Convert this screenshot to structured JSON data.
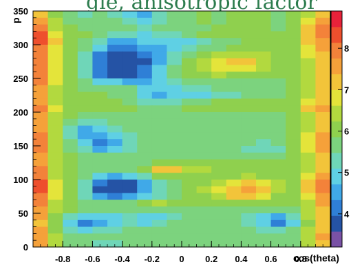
{
  "chart_data": {
    "type": "heatmap",
    "title": "gle, anisotropic factor",
    "xlabel": "cos(theta)",
    "ylabel": "p",
    "xlim": [
      -1,
      1
    ],
    "ylim": [
      0,
      350
    ],
    "x_ticks": [
      "-0.8",
      "-0.6",
      "-0.4",
      "-0.2",
      "0",
      "0.2",
      "0.4",
      "0.6",
      "0.8"
    ],
    "y_ticks": [
      "0",
      "50",
      "100",
      "150",
      "200",
      "250",
      "300",
      "350"
    ],
    "zlim": [
      3.2,
      8.9
    ],
    "z_ticks": [
      "4",
      "5",
      "6",
      "7",
      "8"
    ],
    "palette": [
      "#7a52a6",
      "#2553a5",
      "#2f7fd6",
      "#40a9e8",
      "#5fd0e4",
      "#6fd6b8",
      "#7cd37e",
      "#8fd04e",
      "#b2d93f",
      "#e4e43a",
      "#f2c43a",
      "#f5a13a",
      "#f3823a",
      "#ee4f2d",
      "#e8223a"
    ],
    "grid": false,
    "legend": "colorbar-right",
    "cos_theta": [
      -0.95,
      -0.85,
      -0.75,
      -0.65,
      -0.55,
      -0.45,
      -0.35,
      -0.25,
      -0.15,
      -0.05,
      0.05,
      0.15,
      0.25,
      0.35,
      0.45,
      0.55,
      0.65,
      0.75,
      0.85,
      0.95
    ],
    "p": [
      345,
      335,
      325,
      315,
      305,
      295,
      285,
      275,
      265,
      255,
      245,
      235,
      225,
      215,
      205,
      195,
      185,
      175,
      165,
      155,
      145,
      135,
      125,
      115,
      105,
      95,
      85,
      75,
      65,
      55,
      45,
      35,
      25,
      15,
      5
    ],
    "z": [
      [
        7.0,
        6.2,
        5.6,
        5.4,
        5.6,
        5.4,
        5.0,
        4.6,
        5.4,
        5.8,
        5.8,
        6.0,
        5.8,
        6.0,
        6.0,
        6.0,
        5.8,
        6.0,
        6.6,
        7.2
      ],
      [
        7.4,
        6.4,
        5.8,
        5.6,
        5.6,
        5.6,
        5.2,
        4.8,
        5.2,
        5.8,
        5.8,
        6.0,
        5.8,
        6.2,
        6.0,
        6.0,
        5.8,
        6.0,
        6.8,
        7.6
      ],
      [
        8.0,
        6.6,
        6.0,
        5.8,
        5.8,
        5.8,
        5.6,
        5.4,
        5.6,
        5.8,
        5.8,
        5.8,
        6.0,
        6.2,
        6.2,
        6.0,
        5.8,
        6.0,
        7.0,
        7.8
      ],
      [
        8.2,
        6.8,
        6.0,
        6.0,
        5.6,
        5.4,
        5.4,
        5.0,
        5.2,
        5.4,
        5.8,
        6.0,
        6.2,
        6.2,
        6.0,
        6.0,
        6.0,
        6.0,
        7.0,
        8.0
      ],
      [
        8.2,
        7.0,
        6.0,
        5.8,
        5.2,
        4.6,
        4.6,
        4.8,
        4.8,
        5.0,
        5.0,
        5.2,
        5.6,
        5.8,
        6.0,
        6.0,
        6.0,
        6.0,
        7.0,
        7.6
      ],
      [
        8.0,
        6.8,
        6.0,
        5.6,
        4.8,
        4.2,
        4.2,
        4.4,
        4.6,
        5.0,
        5.4,
        5.6,
        5.8,
        6.0,
        6.0,
        6.0,
        6.0,
        6.0,
        6.8,
        7.4
      ],
      [
        7.8,
        6.8,
        6.0,
        5.4,
        4.2,
        3.8,
        3.8,
        4.0,
        4.6,
        5.2,
        5.8,
        6.2,
        6.4,
        6.6,
        6.6,
        6.4,
        6.2,
        6.0,
        6.8,
        7.2
      ],
      [
        7.8,
        6.8,
        6.0,
        5.2,
        4.0,
        3.6,
        3.6,
        3.8,
        4.6,
        5.4,
        6.0,
        6.4,
        6.8,
        7.2,
        7.0,
        6.6,
        6.2,
        6.0,
        6.6,
        7.0
      ],
      [
        7.8,
        6.8,
        6.0,
        5.2,
        4.0,
        3.8,
        3.8,
        4.0,
        4.8,
        5.6,
        6.0,
        6.4,
        6.8,
        6.8,
        6.8,
        6.4,
        6.2,
        6.0,
        6.6,
        7.0
      ],
      [
        8.0,
        6.8,
        6.0,
        5.4,
        4.2,
        3.8,
        3.9,
        4.2,
        4.8,
        5.6,
        6.0,
        6.2,
        6.4,
        6.2,
        6.2,
        6.0,
        6.0,
        6.0,
        6.6,
        7.2
      ],
      [
        8.0,
        6.8,
        6.0,
        5.6,
        5.0,
        4.8,
        4.6,
        4.4,
        4.8,
        5.4,
        5.6,
        5.8,
        5.8,
        5.8,
        5.8,
        5.8,
        5.8,
        6.0,
        6.6,
        7.2
      ],
      [
        7.6,
        6.6,
        6.0,
        5.8,
        5.8,
        5.8,
        5.6,
        5.0,
        4.8,
        5.0,
        5.2,
        5.4,
        5.6,
        5.8,
        5.8,
        5.8,
        5.8,
        6.0,
        6.6,
        7.2
      ],
      [
        7.4,
        6.4,
        6.0,
        6.0,
        6.0,
        5.8,
        5.6,
        5.0,
        4.6,
        4.8,
        4.8,
        5.0,
        5.2,
        5.4,
        5.6,
        5.6,
        5.8,
        6.0,
        6.4,
        7.0
      ],
      [
        7.6,
        6.6,
        6.0,
        6.0,
        6.0,
        6.0,
        5.8,
        5.4,
        5.2,
        5.4,
        5.6,
        5.8,
        6.0,
        6.0,
        6.0,
        6.0,
        6.0,
        6.0,
        6.8,
        7.2
      ],
      [
        7.8,
        6.8,
        6.0,
        6.0,
        6.0,
        6.0,
        6.0,
        5.8,
        5.8,
        5.8,
        6.0,
        6.0,
        6.0,
        6.0,
        6.0,
        6.0,
        6.0,
        6.2,
        7.2,
        7.4
      ],
      [
        7.6,
        6.6,
        6.0,
        5.8,
        5.8,
        5.8,
        5.8,
        5.8,
        5.8,
        5.8,
        5.8,
        5.8,
        5.8,
        5.8,
        5.8,
        5.8,
        5.8,
        6.0,
        6.6,
        7.2
      ],
      [
        7.4,
        6.4,
        5.6,
        5.2,
        5.4,
        5.6,
        5.8,
        5.8,
        5.8,
        5.8,
        5.8,
        5.8,
        5.8,
        5.8,
        5.8,
        5.6,
        5.6,
        6.0,
        6.6,
        7.0
      ],
      [
        7.6,
        6.4,
        5.4,
        4.6,
        4.8,
        5.2,
        5.6,
        5.8,
        5.8,
        5.8,
        5.8,
        5.8,
        5.8,
        5.8,
        5.8,
        5.6,
        5.6,
        6.0,
        6.6,
        7.2
      ],
      [
        7.8,
        6.6,
        5.4,
        4.4,
        4.4,
        4.8,
        5.4,
        5.8,
        5.8,
        5.8,
        5.8,
        5.8,
        5.8,
        5.8,
        5.8,
        5.6,
        5.6,
        6.0,
        6.8,
        7.4
      ],
      [
        7.8,
        6.6,
        5.6,
        4.8,
        4.2,
        4.6,
        5.2,
        5.6,
        5.8,
        5.8,
        5.8,
        5.8,
        5.8,
        5.8,
        5.6,
        5.4,
        5.6,
        6.0,
        6.8,
        7.4
      ],
      [
        7.8,
        6.6,
        5.8,
        5.4,
        4.6,
        5.0,
        5.4,
        5.6,
        5.8,
        5.8,
        5.8,
        5.8,
        5.8,
        5.6,
        5.4,
        5.2,
        5.4,
        6.0,
        6.8,
        7.4
      ],
      [
        7.6,
        6.6,
        6.0,
        5.8,
        5.6,
        5.6,
        5.6,
        5.6,
        5.6,
        5.8,
        5.8,
        5.8,
        5.8,
        5.6,
        5.6,
        5.6,
        5.6,
        6.0,
        6.6,
        7.2
      ],
      [
        7.6,
        6.6,
        6.0,
        5.8,
        5.8,
        5.8,
        5.8,
        5.8,
        6.0,
        6.0,
        6.0,
        6.0,
        6.0,
        6.0,
        6.0,
        6.0,
        6.0,
        6.0,
        6.6,
        7.2
      ],
      [
        7.8,
        6.6,
        6.0,
        5.8,
        5.8,
        5.8,
        5.8,
        6.2,
        7.2,
        7.0,
        6.6,
        6.4,
        6.2,
        6.2,
        6.2,
        6.0,
        6.0,
        6.0,
        6.6,
        7.2
      ],
      [
        8.0,
        6.6,
        6.0,
        5.6,
        5.0,
        4.6,
        4.8,
        5.4,
        6.0,
        6.0,
        6.0,
        6.0,
        6.2,
        6.2,
        6.4,
        6.2,
        6.0,
        6.0,
        6.8,
        7.6
      ],
      [
        8.2,
        6.8,
        6.0,
        5.2,
        4.0,
        3.8,
        3.8,
        4.4,
        5.2,
        5.6,
        6.0,
        6.2,
        6.6,
        6.8,
        7.0,
        6.8,
        6.4,
        6.0,
        7.0,
        7.8
      ],
      [
        8.2,
        6.8,
        6.0,
        5.2,
        3.9,
        3.7,
        3.8,
        4.4,
        5.2,
        5.8,
        6.0,
        6.4,
        6.8,
        7.2,
        7.4,
        7.0,
        6.4,
        6.0,
        7.0,
        7.8
      ],
      [
        8.0,
        6.8,
        6.0,
        5.4,
        4.4,
        4.2,
        4.4,
        4.8,
        5.4,
        5.8,
        6.0,
        6.2,
        6.6,
        7.0,
        7.0,
        6.8,
        6.2,
        6.0,
        6.8,
        7.6
      ],
      [
        7.8,
        6.6,
        6.0,
        5.8,
        5.6,
        5.8,
        5.8,
        6.2,
        6.6,
        6.2,
        6.0,
        6.0,
        6.2,
        6.2,
        6.2,
        6.0,
        6.0,
        6.0,
        6.6,
        7.4
      ],
      [
        7.6,
        6.6,
        6.0,
        5.8,
        5.8,
        5.8,
        5.8,
        5.8,
        5.8,
        5.8,
        5.8,
        5.8,
        5.8,
        5.8,
        5.8,
        5.6,
        5.6,
        5.8,
        6.6,
        7.2
      ],
      [
        7.4,
        6.2,
        5.2,
        4.8,
        4.8,
        5.0,
        5.2,
        4.8,
        5.0,
        5.4,
        5.6,
        5.6,
        5.6,
        5.6,
        5.4,
        5.0,
        4.6,
        5.2,
        6.4,
        7.0
      ],
      [
        7.2,
        6.0,
        4.8,
        4.2,
        4.6,
        5.0,
        5.4,
        5.0,
        5.2,
        5.6,
        5.8,
        5.8,
        5.8,
        5.6,
        5.4,
        4.8,
        4.0,
        4.8,
        6.2,
        7.0
      ],
      [
        7.4,
        6.2,
        5.4,
        5.0,
        5.2,
        5.4,
        5.6,
        5.6,
        5.6,
        5.6,
        5.8,
        5.8,
        5.8,
        5.6,
        5.6,
        5.4,
        5.2,
        5.6,
        6.4,
        7.2
      ],
      [
        7.6,
        6.4,
        5.8,
        5.6,
        5.6,
        5.6,
        5.6,
        5.6,
        5.8,
        5.8,
        5.8,
        5.8,
        5.8,
        5.8,
        5.8,
        5.8,
        5.6,
        5.8,
        6.6,
        7.4
      ],
      [
        7.4,
        6.4,
        5.8,
        5.6,
        5.4,
        5.4,
        5.6,
        5.6,
        5.8,
        5.8,
        5.8,
        5.8,
        5.8,
        5.8,
        5.8,
        5.8,
        5.6,
        5.6,
        6.4,
        7.2
      ]
    ]
  }
}
